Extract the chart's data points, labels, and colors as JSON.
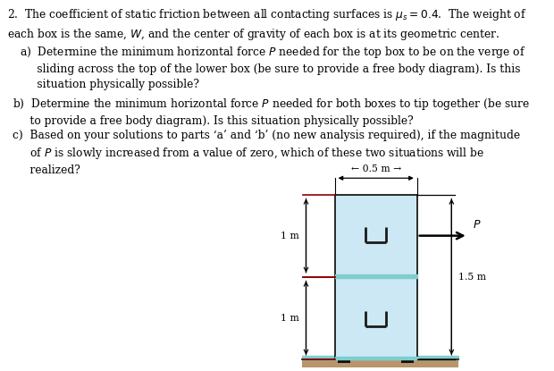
{
  "background_color": "#ffffff",
  "box_color": "#cce8f4",
  "box_outline": "#1a1a1a",
  "ground_color": "#b8956a",
  "ground_stripe_color": "#7ecece",
  "interface_color": "#7ecece",
  "dim_line_color": "#8b3a3a",
  "arrow_color": "#1a1a1a",
  "handle_color": "#1a1a1a",
  "font_size_body": 8.8,
  "font_size_diagram": 8.2,
  "font_family": "DejaVu Serif",
  "header": "2.  The coefficient of static friction between all contacting surfaces is $\\mu_s = 0.4$.  The weight of\neach box is the same, $W$, and the center of gravity of each box is at its geometric center.",
  "item_a": "a)  Determine the minimum horizontal force $P$ needed for the top box to be on the verge of\n     sliding across the top of the lower box (be sure to provide a free body diagram). Is this\n     situation physically possible?",
  "item_b": "b)  Determine the minimum horizontal force $P$ needed for both boxes to tip together (be sure\n     to provide a free body diagram). Is this situation physically possible?",
  "item_c": "c)  Based on your solutions to parts ‘a’ and ‘b’ (no new analysis required), if the magnitude\n     of $P$ is slowly increased from a value of zero, which of these two situations will be\n     realized?"
}
